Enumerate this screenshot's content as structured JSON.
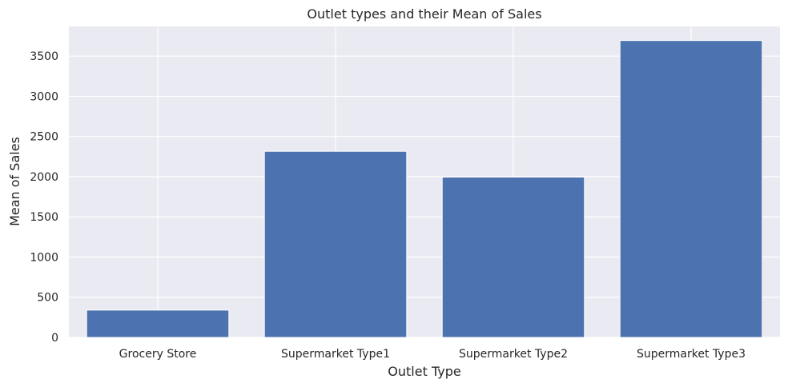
{
  "chart_data": {
    "type": "bar",
    "title": "Outlet types and their Mean of Sales",
    "xlabel": "Outlet Type",
    "ylabel": "Mean of Sales",
    "categories": [
      "Grocery Store",
      "Supermarket Type1",
      "Supermarket Type2",
      "Supermarket Type3"
    ],
    "values": [
      340,
      2316,
      1995,
      3694
    ],
    "ylim": [
      0,
      3870
    ],
    "yticks": [
      0,
      500,
      1000,
      1500,
      2000,
      2500,
      3000,
      3500
    ],
    "grid": true,
    "colors": {
      "bar": "#4c72b0",
      "background": "#eaeaf2",
      "grid": "#ffffff",
      "text": "#262626"
    }
  }
}
